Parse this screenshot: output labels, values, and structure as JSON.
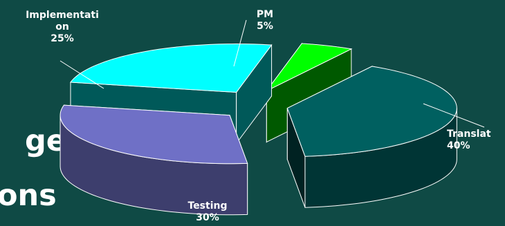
{
  "slide_text": {
    "line1": "ge",
    "line2": "ons"
  },
  "chart_data": {
    "type": "pie",
    "style": "3d-exploded",
    "slices": [
      {
        "label": "Translat",
        "value": 40,
        "percent_label": "40%",
        "color": "#006060"
      },
      {
        "label": "Testing",
        "value": 30,
        "percent_label": "30%",
        "color": "#6f70c6"
      },
      {
        "label": "Implementation",
        "label_lines": [
          "Implementati",
          "on"
        ],
        "value": 25,
        "percent_label": "25%",
        "color": "#00ffff"
      },
      {
        "label": "PM",
        "value": 5,
        "percent_label": "5%",
        "color": "#00ff00"
      }
    ]
  }
}
